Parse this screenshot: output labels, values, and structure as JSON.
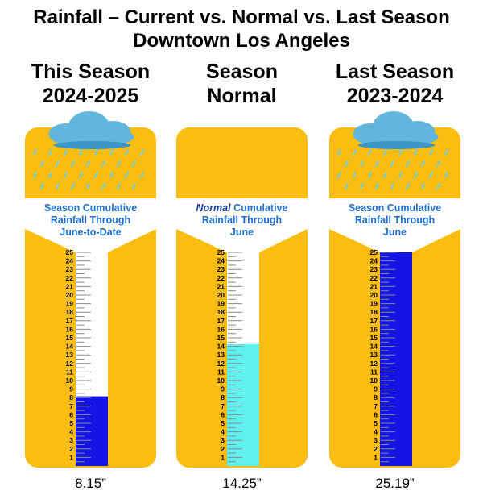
{
  "chart_data": {
    "type": "bar",
    "title": "Rainfall – Current vs. Normal vs. Last Season",
    "subtitle": "Downtown Los Angeles",
    "ylim": [
      0,
      25
    ],
    "yticks": [
      "1",
      "2",
      "3",
      "4",
      "5",
      "6",
      "7",
      "8",
      "9",
      "10",
      "11",
      "12",
      "13",
      "14",
      "15",
      "16",
      "17",
      "18",
      "19",
      "20",
      "21",
      "22",
      "23",
      "24",
      "25"
    ],
    "categories": [
      {
        "header": [
          "This Season",
          "2024-2025"
        ],
        "caption": {
          "emphasis": "",
          "lines": [
            "Season Cumulative",
            "Rainfall Through",
            "June-to-Date"
          ]
        },
        "cloud": true,
        "value": 8.15,
        "value_label": "8.15”",
        "fill_color": "#1414e6"
      },
      {
        "header": [
          "Season",
          "Normal"
        ],
        "caption": {
          "emphasis": "Normal",
          "lines": [
            " Cumulative",
            "Rainfall Through",
            "June"
          ]
        },
        "cloud": false,
        "value": 14.25,
        "value_label": "14.25”",
        "fill_color": "#5ff0f0"
      },
      {
        "header": [
          "Last Season",
          "2023-2024"
        ],
        "caption": {
          "emphasis": "",
          "lines": [
            "Season Cumulative",
            "Rainfall Through",
            "June"
          ]
        },
        "cloud": true,
        "value": 25.19,
        "value_label": "25.19”",
        "fill_color": "#1414e6"
      }
    ]
  },
  "colors": {
    "panel": "#fbbd0f",
    "caption_text": "#1f6fd1",
    "cloud": "#62b6dd",
    "cloud_dark": "#3c97c6",
    "rain": "#6fcfdc",
    "tube": "#ffffff",
    "tick": "#8a8a8a"
  }
}
